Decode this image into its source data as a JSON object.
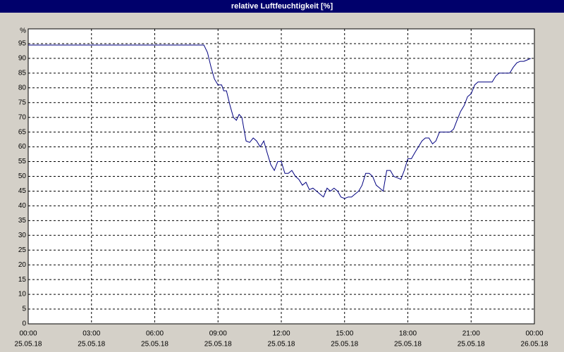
{
  "chart_data": {
    "type": "line",
    "title": "relative Luftfeuchtigkeit [%]",
    "y_unit": "%",
    "x": [
      0,
      4,
      8,
      8.33,
      8.5,
      8.67,
      8.83,
      9,
      9.17,
      9.27,
      9.4,
      9.57,
      9.73,
      9.87,
      10,
      10.13,
      10.33,
      10.5,
      10.67,
      10.83,
      11,
      11.17,
      11.33,
      11.5,
      11.67,
      11.83,
      12,
      12.17,
      12.33,
      12.5,
      12.67,
      12.83,
      13,
      13.17,
      13.33,
      13.5,
      13.67,
      13.83,
      14,
      14.17,
      14.33,
      14.5,
      14.67,
      14.83,
      15,
      15.17,
      15.33,
      15.5,
      15.67,
      15.83,
      16,
      16.17,
      16.33,
      16.5,
      16.67,
      16.83,
      17,
      17.17,
      17.33,
      17.5,
      17.67,
      17.83,
      18,
      18.17,
      18.33,
      18.5,
      18.67,
      18.83,
      19,
      19.17,
      19.33,
      19.5,
      19.67,
      19.83,
      20,
      20.17,
      20.33,
      20.5,
      20.67,
      20.83,
      21,
      21.17,
      21.33,
      21.5,
      21.67,
      21.83,
      22,
      22.17,
      22.33,
      22.5,
      22.67,
      22.83,
      23,
      23.17,
      23.33,
      23.5,
      23.67,
      23.83
    ],
    "values": [
      94.5,
      94.5,
      94.5,
      94.5,
      92,
      87,
      83,
      81,
      81,
      79,
      79,
      74,
      70,
      69,
      71,
      70,
      62,
      61.5,
      63,
      62,
      60,
      62,
      58,
      54,
      52,
      55,
      55,
      51,
      51,
      52,
      50,
      49,
      47,
      48,
      45.5,
      46,
      45,
      44,
      43,
      46,
      45,
      46,
      45,
      43,
      42.5,
      43,
      43,
      44,
      45,
      47,
      51,
      51,
      50,
      47,
      46,
      45,
      52,
      52,
      50,
      49.5,
      49,
      52,
      56,
      56,
      58,
      60,
      62,
      63,
      63,
      61,
      62,
      65,
      65,
      65,
      65,
      66,
      69,
      72,
      74,
      77,
      78,
      81,
      82,
      82,
      82,
      82,
      82,
      84,
      85,
      85,
      85,
      85,
      87,
      88.5,
      89,
      89,
      89.5,
      90
    ],
    "color": "#000080",
    "xlim": [
      0,
      24
    ],
    "xticks": [
      {
        "value": 0,
        "label": "00:00"
      },
      {
        "value": 3,
        "label": "03:00"
      },
      {
        "value": 6,
        "label": "06:00"
      },
      {
        "value": 9,
        "label": "09:00"
      },
      {
        "value": 12,
        "label": "12:00"
      },
      {
        "value": 15,
        "label": "15:00"
      },
      {
        "value": 18,
        "label": "18:00"
      },
      {
        "value": 21,
        "label": "21:00"
      },
      {
        "value": 24,
        "label": "00:00"
      }
    ],
    "xtick_dates": [
      "25.05.18",
      "25.05.18",
      "25.05.18",
      "25.05.18",
      "25.05.18",
      "25.05.18",
      "25.05.18",
      "25.05.18",
      "26.05.18"
    ],
    "ylim": [
      0,
      100
    ],
    "yticks": [
      0,
      5,
      10,
      15,
      20,
      25,
      30,
      35,
      40,
      45,
      50,
      55,
      60,
      65,
      70,
      75,
      80,
      85,
      90,
      95
    ],
    "grid": true
  }
}
